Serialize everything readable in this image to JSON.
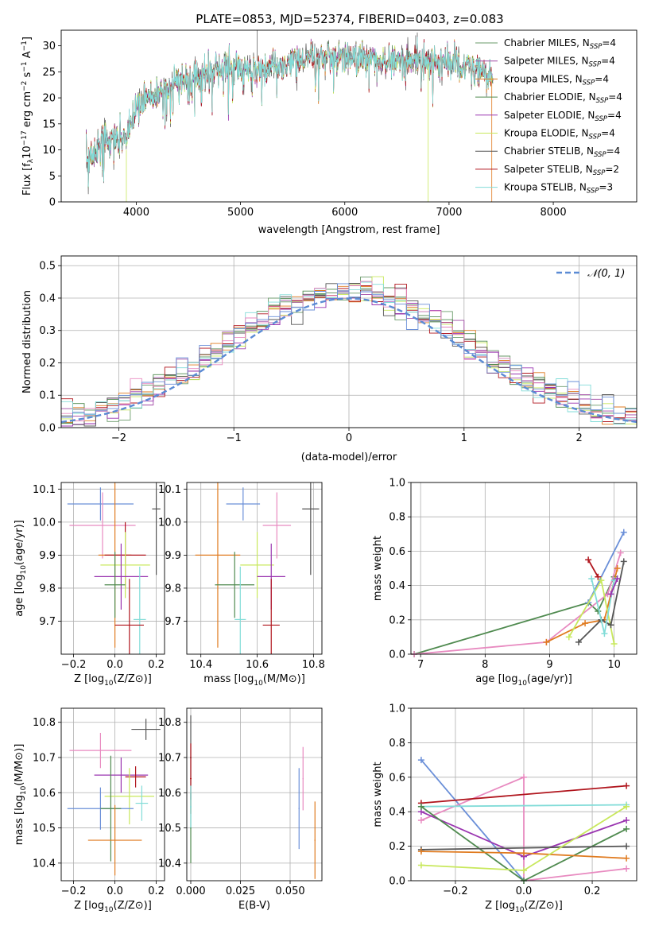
{
  "figure": {
    "title": "PLATE=0853, MJD=52374, FIBERID=0403, z=0.083",
    "models": [
      {
        "name": "Chabrier MILES, N",
        "sub": "SSP",
        "tail": "=4",
        "color": "#6a9a6a"
      },
      {
        "name": "Salpeter MILES, N",
        "sub": "SSP",
        "tail": "=4",
        "color": "#a24aa6"
      },
      {
        "name": "Kroupa MILES, N",
        "sub": "SSP",
        "tail": "=4",
        "color": "#e07b20"
      },
      {
        "name": "Chabrier ELODIE, N",
        "sub": "SSP",
        "tail": "=4",
        "color": "#4f8a4f"
      },
      {
        "name": "Salpeter ELODIE, N",
        "sub": "SSP",
        "tail": "=4",
        "color": "#9a35b0"
      },
      {
        "name": "Kroupa ELODIE, N",
        "sub": "SSP",
        "tail": "=4",
        "color": "#c8e85c"
      },
      {
        "name": "Chabrier STELIB, N",
        "sub": "SSP",
        "tail": "=4",
        "color": "#555555"
      },
      {
        "name": "Salpeter STELIB, N",
        "sub": "SSP",
        "tail": "=2",
        "color": "#b0151d"
      },
      {
        "name": "Kroupa STELIB, N",
        "sub": "SSP",
        "tail": "=3",
        "color": "#82dcd8"
      }
    ],
    "point_colors": [
      "#6a9a6a",
      "#a24aa6",
      "#e07b20",
      "#4f8a4f",
      "#9a35b0",
      "#c8e85c",
      "#555555",
      "#b0151d",
      "#82dcd8",
      "#6a8fd8",
      "#e88ac0"
    ]
  },
  "chart_data": [
    {
      "id": "spectrum",
      "type": "line",
      "xlabel": "wavelength [Angstrom, rest frame]",
      "ylabel": "Flux [f",
      "ylabel_parts": [
        "Flux [f",
        "λ",
        "10",
        "−17",
        " erg cm",
        "−2",
        " s",
        "−1",
        " A",
        "−1",
        "]"
      ],
      "xlim": [
        3280,
        8800
      ],
      "ylim": [
        0,
        33
      ],
      "xticks": [
        4000,
        5000,
        6000,
        7000,
        8000
      ],
      "yticks": [
        0,
        5,
        10,
        15,
        20,
        25,
        30
      ],
      "continuum": {
        "x": [
          3520,
          3700,
          3900,
          4000,
          4100,
          4300,
          4500,
          4700,
          4900,
          5100,
          5300,
          5500,
          5700,
          5900,
          6100,
          6300,
          6500,
          6700,
          6900,
          7100,
          7300,
          7420
        ],
        "y": [
          8,
          12,
          12,
          18,
          20,
          22,
          24,
          25,
          26,
          25.5,
          26,
          27,
          27.5,
          28,
          28,
          27.5,
          27,
          27,
          27,
          26.5,
          25,
          24
        ]
      }
    },
    {
      "id": "residuals",
      "type": "bar",
      "xlabel": "(data-model)/error",
      "ylabel": "Normed distribution",
      "xlim": [
        -2.5,
        2.5
      ],
      "ylim": [
        0,
        0.53
      ],
      "xticks": [
        -2,
        -1,
        0,
        1,
        2
      ],
      "yticks": [
        0.0,
        0.1,
        0.2,
        0.3,
        0.4,
        0.5
      ],
      "legend": "𝒩(0, 1)",
      "legend_position": "top-right",
      "bin_width": 0.1
    },
    {
      "id": "age-vs-Z",
      "type": "scatter",
      "xlabel": "Z [log",
      "ylabel": "age  [log",
      "xlim": [
        -0.26,
        0.24
      ],
      "ylim": [
        9.6,
        10.12
      ],
      "xticks": [
        -0.2,
        0.0,
        0.2
      ],
      "yticks": [
        9.7,
        9.8,
        9.9,
        10.0,
        10.1
      ],
      "points": [
        {
          "x": -0.07,
          "y": 10.055,
          "ex": 0.16,
          "ey": 0.05,
          "c": 9
        },
        {
          "x": 0.2,
          "y": 10.04,
          "ex": 0.02,
          "ey": 0.2,
          "c": 6
        },
        {
          "x": -0.06,
          "y": 9.99,
          "ex": 0.16,
          "ey": 0.1,
          "c": 10
        },
        {
          "x": 0.0,
          "y": 9.9,
          "ex": 0.08,
          "ey": 0.28,
          "c": 2
        },
        {
          "x": 0.05,
          "y": 9.9,
          "ex": 0.1,
          "ey": 0.1,
          "c": 7
        },
        {
          "x": 0.05,
          "y": 9.87,
          "ex": 0.12,
          "ey": 0.1,
          "c": 5
        },
        {
          "x": 0.03,
          "y": 9.835,
          "ex": 0.13,
          "ey": 0.1,
          "c": 4
        },
        {
          "x": -0.0,
          "y": 9.81,
          "ex": 0.05,
          "ey": 0.1,
          "c": 3
        },
        {
          "x": 0.12,
          "y": 9.705,
          "ex": 0.03,
          "ey": 0.16,
          "c": 8
        },
        {
          "x": 0.07,
          "y": 9.688,
          "ex": 0.07,
          "ey": 0.14,
          "c": 7
        }
      ]
    },
    {
      "id": "age-vs-mass",
      "type": "scatter",
      "xlabel": "mass [log",
      "xlim": [
        10.35,
        10.83
      ],
      "ylim": [
        9.6,
        10.12
      ],
      "xticks": [
        10.4,
        10.6,
        10.8
      ],
      "yticks": [
        9.7,
        9.8,
        9.9,
        10.0,
        10.1
      ],
      "points": [
        {
          "x": 10.55,
          "y": 10.055,
          "ex": 0.06,
          "ey": 0.05,
          "c": 9
        },
        {
          "x": 10.79,
          "y": 10.04,
          "ex": 0.03,
          "ey": 0.2,
          "c": 6
        },
        {
          "x": 10.67,
          "y": 9.99,
          "ex": 0.05,
          "ey": 0.1,
          "c": 10
        },
        {
          "x": 10.46,
          "y": 9.9,
          "ex": 0.08,
          "ey": 0.28,
          "c": 2
        },
        {
          "x": 10.6,
          "y": 9.87,
          "ex": 0.06,
          "ey": 0.1,
          "c": 5
        },
        {
          "x": 10.65,
          "y": 9.835,
          "ex": 0.05,
          "ey": 0.1,
          "c": 4
        },
        {
          "x": 10.52,
          "y": 9.81,
          "ex": 0.07,
          "ey": 0.1,
          "c": 3
        },
        {
          "x": 10.54,
          "y": 9.705,
          "ex": 0.02,
          "ey": 0.16,
          "c": 8
        },
        {
          "x": 10.65,
          "y": 9.688,
          "ex": 0.03,
          "ey": 0.14,
          "c": 7
        }
      ]
    },
    {
      "id": "massweight-vs-age",
      "type": "line",
      "xlabel": "age  [log",
      "ylabel": "mass weight",
      "xlim": [
        6.85,
        10.35
      ],
      "ylim": [
        0,
        1
      ],
      "xticks": [
        7,
        8,
        9,
        10
      ],
      "yticks": [
        0.0,
        0.2,
        0.4,
        0.6,
        0.8,
        1.0
      ],
      "series": [
        {
          "c": 3,
          "x": [
            6.9,
            9.6,
            9.75,
            10.0
          ],
          "y": [
            0.0,
            0.3,
            0.25,
            0.45
          ]
        },
        {
          "c": 10,
          "x": [
            6.9,
            8.95,
            9.9,
            10.1
          ],
          "y": [
            0.0,
            0.07,
            0.35,
            0.59
          ]
        },
        {
          "c": 9,
          "x": [
            9.6,
            10.15
          ],
          "y": [
            0.3,
            0.71
          ]
        },
        {
          "c": 7,
          "x": [
            9.6,
            9.75
          ],
          "y": [
            0.55,
            0.45
          ]
        },
        {
          "c": 2,
          "x": [
            8.95,
            9.55,
            9.85,
            10.05
          ],
          "y": [
            0.07,
            0.18,
            0.2,
            0.5
          ]
        },
        {
          "c": 5,
          "x": [
            9.3,
            9.8,
            10.0
          ],
          "y": [
            0.1,
            0.43,
            0.06
          ]
        },
        {
          "c": 6,
          "x": [
            9.45,
            9.8,
            9.95,
            10.15
          ],
          "y": [
            0.07,
            0.2,
            0.17,
            0.54
          ]
        },
        {
          "c": 8,
          "x": [
            9.65,
            9.85,
            10.0
          ],
          "y": [
            0.44,
            0.12,
            0.43
          ]
        },
        {
          "c": 4,
          "x": [
            9.95,
            10.05
          ],
          "y": [
            0.35,
            0.44
          ]
        }
      ]
    },
    {
      "id": "mass-vs-Z",
      "type": "scatter",
      "xlabel": "Z [log",
      "ylabel": "mass [log",
      "xlim": [
        -0.26,
        0.24
      ],
      "ylim": [
        10.35,
        10.84
      ],
      "xticks": [
        -0.2,
        0.0,
        0.2
      ],
      "yticks": [
        10.4,
        10.5,
        10.6,
        10.7,
        10.8
      ],
      "points": [
        {
          "x": 0.15,
          "y": 10.78,
          "ex": 0.07,
          "ey": 0.03,
          "c": 6
        },
        {
          "x": -0.07,
          "y": 10.72,
          "ex": 0.15,
          "ey": 0.05,
          "c": 10
        },
        {
          "x": 0.03,
          "y": 10.65,
          "ex": 0.13,
          "ey": 0.05,
          "c": 4
        },
        {
          "x": 0.1,
          "y": 10.645,
          "ex": 0.05,
          "ey": 0.03,
          "c": 7
        },
        {
          "x": 0.07,
          "y": 10.59,
          "ex": 0.12,
          "ey": 0.08,
          "c": 5
        },
        {
          "x": 0.13,
          "y": 10.57,
          "ex": 0.03,
          "ey": 0.05,
          "c": 8
        },
        {
          "x": -0.07,
          "y": 10.555,
          "ex": 0.16,
          "ey": 0.06,
          "c": 9
        },
        {
          "x": -0.02,
          "y": 10.555,
          "ex": 0.05,
          "ey": 0.15,
          "c": 3
        },
        {
          "x": 0.0,
          "y": 10.465,
          "ex": 0.13,
          "ey": 0.1,
          "c": 2
        }
      ]
    },
    {
      "id": "mass-vs-EBV",
      "type": "scatter",
      "xlabel": "E(B-V)",
      "xlim": [
        -0.002,
        0.066
      ],
      "ylim": [
        10.35,
        10.84
      ],
      "xticks": [
        0.0,
        0.025,
        0.05
      ],
      "yticks": [
        10.4,
        10.5,
        10.6,
        10.7,
        10.8
      ],
      "points": [
        {
          "x": 0.0,
          "y": 10.7,
          "ex": 0.0004,
          "ey": 0.12,
          "c": 6
        },
        {
          "x": 0.0,
          "y": 10.64,
          "ex": 0.0004,
          "ey": 0.1,
          "c": 7
        },
        {
          "x": 0.0,
          "y": 10.5,
          "ex": 0.0004,
          "ey": 0.1,
          "c": 3
        },
        {
          "x": 0.0,
          "y": 10.56,
          "ex": 0.0004,
          "ey": 0.06,
          "c": 8
        },
        {
          "x": 0.0545,
          "y": 10.555,
          "ex": 0.0003,
          "ey": 0.115,
          "c": 9
        },
        {
          "x": 0.0565,
          "y": 10.64,
          "ex": 0.0003,
          "ey": 0.09,
          "c": 10
        },
        {
          "x": 0.0625,
          "y": 10.465,
          "ex": 0.0003,
          "ey": 0.11,
          "c": 2
        }
      ]
    },
    {
      "id": "massweight-vs-Z",
      "type": "line",
      "xlabel": "Z [log",
      "ylabel": "mass weight",
      "xlim": [
        -0.33,
        0.33
      ],
      "ylim": [
        0,
        1
      ],
      "xticks": [
        -0.2,
        0.0,
        0.2
      ],
      "yticks": [
        0.0,
        0.2,
        0.4,
        0.6,
        0.8,
        1.0
      ],
      "series": [
        {
          "c": 9,
          "x": [
            -0.3,
            0.0
          ],
          "y": [
            0.7,
            0.0
          ]
        },
        {
          "c": 10,
          "x": [
            -0.3,
            0.0,
            0.0,
            0.3
          ],
          "y": [
            0.35,
            0.6,
            0.0,
            0.07
          ]
        },
        {
          "c": 7,
          "x": [
            -0.3,
            0.3
          ],
          "y": [
            0.45,
            0.55
          ]
        },
        {
          "c": 8,
          "x": [
            -0.3,
            0.3
          ],
          "y": [
            0.43,
            0.44
          ]
        },
        {
          "c": 4,
          "x": [
            -0.3,
            0.0,
            0.3
          ],
          "y": [
            0.4,
            0.14,
            0.35
          ]
        },
        {
          "c": 3,
          "x": [
            -0.3,
            0.0,
            0.3
          ],
          "y": [
            0.43,
            0.0,
            0.3
          ]
        },
        {
          "c": 6,
          "x": [
            -0.3,
            0.3
          ],
          "y": [
            0.18,
            0.2
          ]
        },
        {
          "c": 2,
          "x": [
            -0.3,
            0.0,
            0.3
          ],
          "y": [
            0.17,
            0.16,
            0.13
          ]
        },
        {
          "c": 5,
          "x": [
            -0.3,
            0.0,
            0.3
          ],
          "y": [
            0.09,
            0.06,
            0.43
          ]
        }
      ]
    }
  ]
}
